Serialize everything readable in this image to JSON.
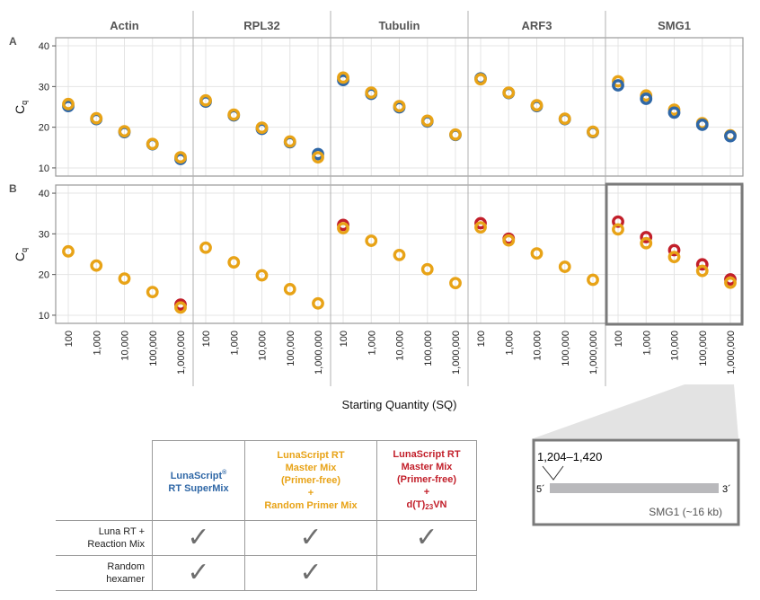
{
  "chart_data": {
    "type": "scatter",
    "facets": [
      "Actin",
      "RPL32",
      "Tubulin",
      "ARF3",
      "SMG1"
    ],
    "rows": [
      "A",
      "B"
    ],
    "x_categories": [
      "100",
      "1,000",
      "10,000",
      "100,000",
      "1,000,000"
    ],
    "xlabel": "Starting Quantity (SQ)",
    "ylabel_main": "C",
    "ylabel_sub": "q",
    "ylim": [
      8,
      42
    ],
    "yticks": [
      10,
      20,
      30,
      40
    ],
    "grid": true,
    "colors": {
      "blue": "#2f67a6",
      "orange": "#e8a317",
      "red": "#c21f2a"
    },
    "panels": [
      {
        "row": "A",
        "facet": "Actin",
        "series": [
          {
            "name": "LunaScript RT SuperMix",
            "color": "blue",
            "values": [
              25.2,
              22.0,
              18.8,
              15.8,
              12.2
            ]
          },
          {
            "name": "Primer-free + Random Primer Mix",
            "color": "orange",
            "values": [
              25.7,
              22.2,
              19.0,
              15.9,
              12.6
            ]
          }
        ]
      },
      {
        "row": "A",
        "facet": "RPL32",
        "series": [
          {
            "name": "LunaScript RT SuperMix",
            "color": "blue",
            "values": [
              26.3,
              22.9,
              19.6,
              16.3,
              13.4
            ]
          },
          {
            "name": "Primer-free + Random Primer Mix",
            "color": "orange",
            "values": [
              26.6,
              23.1,
              19.9,
              16.5,
              12.6
            ]
          }
        ]
      },
      {
        "row": "A",
        "facet": "Tubulin",
        "series": [
          {
            "name": "LunaScript RT SuperMix",
            "color": "blue",
            "values": [
              31.6,
              28.2,
              24.9,
              21.4,
              18.1
            ]
          },
          {
            "name": "Primer-free + Random Primer Mix",
            "color": "orange",
            "values": [
              32.2,
              28.5,
              25.2,
              21.6,
              18.2
            ]
          }
        ]
      },
      {
        "row": "A",
        "facet": "ARF3",
        "series": [
          {
            "name": "LunaScript RT SuperMix",
            "color": "blue",
            "values": [
              32.0,
              28.4,
              25.2,
              22.0,
              18.8
            ]
          },
          {
            "name": "Primer-free + Random Primer Mix",
            "color": "orange",
            "values": [
              31.8,
              28.5,
              25.4,
              22.1,
              18.9
            ]
          }
        ]
      },
      {
        "row": "A",
        "facet": "SMG1",
        "series": [
          {
            "name": "Primer-free + Random Primer Mix",
            "color": "orange",
            "values": [
              31.3,
              27.8,
              24.3,
              21.0,
              18.0
            ]
          },
          {
            "name": "LunaScript RT SuperMix",
            "color": "blue",
            "values": [
              30.3,
              27.0,
              23.6,
              20.6,
              17.8
            ]
          }
        ]
      },
      {
        "row": "B",
        "facet": "Actin",
        "series": [
          {
            "name": "Primer-free + d(T)23VN",
            "color": "red",
            "values": [
              null,
              null,
              null,
              null,
              12.6
            ]
          },
          {
            "name": "Primer-free + Random Primer Mix",
            "color": "orange",
            "values": [
              25.7,
              22.2,
              19.0,
              15.7,
              11.9
            ]
          }
        ]
      },
      {
        "row": "B",
        "facet": "RPL32",
        "series": [
          {
            "name": "Primer-free + Random Primer Mix",
            "color": "orange",
            "values": [
              26.6,
              23.0,
              19.8,
              16.4,
              12.9
            ]
          }
        ]
      },
      {
        "row": "B",
        "facet": "Tubulin",
        "series": [
          {
            "name": "Primer-free + d(T)23VN",
            "color": "red",
            "values": [
              32.2,
              null,
              null,
              null,
              null
            ]
          },
          {
            "name": "Primer-free + Random Primer Mix",
            "color": "orange",
            "values": [
              31.4,
              28.3,
              24.8,
              21.3,
              17.9
            ]
          }
        ]
      },
      {
        "row": "B",
        "facet": "ARF3",
        "series": [
          {
            "name": "Primer-free + d(T)23VN",
            "color": "red",
            "values": [
              32.6,
              28.8,
              null,
              null,
              null
            ]
          },
          {
            "name": "Primer-free + Random Primer Mix",
            "color": "orange",
            "values": [
              31.6,
              28.4,
              25.2,
              21.9,
              18.7
            ]
          }
        ]
      },
      {
        "row": "B",
        "facet": "SMG1",
        "series": [
          {
            "name": "Primer-free + d(T)23VN",
            "color": "red",
            "values": [
              33.0,
              29.2,
              26.0,
              22.5,
              18.8
            ]
          },
          {
            "name": "Primer-free + Random Primer Mix",
            "color": "orange",
            "values": [
              31.1,
              27.7,
              24.3,
              20.9,
              18.0
            ]
          }
        ]
      }
    ],
    "highlight": {
      "row": "B",
      "facet": "SMG1"
    }
  },
  "gene_diagram": {
    "range_label": "1,204–1,420",
    "five_prime": "5´",
    "three_prime": "3´",
    "gene_label": "SMG1 (~16 kb)"
  },
  "legend_table": {
    "columns": [
      {
        "color": "blue",
        "lines": [
          "LunaScript",
          "RT SuperMix"
        ],
        "sup": "®"
      },
      {
        "color": "orange",
        "lines": [
          "LunaScript RT",
          "Master Mix",
          "(Primer-free)",
          "+",
          "Random Primer Mix"
        ]
      },
      {
        "color": "red",
        "lines": [
          "LunaScript RT",
          "Master Mix",
          "(Primer-free)",
          "+"
        ],
        "last_pre": "d(T)",
        "last_sub": "23",
        "last_post": "VN"
      }
    ],
    "rows": [
      {
        "label_lines": [
          "Luna RT +",
          "Reaction Mix"
        ],
        "checks": [
          true,
          true,
          true
        ]
      },
      {
        "label_lines": [
          "Random",
          "hexamer"
        ],
        "checks": [
          true,
          true,
          false
        ]
      }
    ],
    "check_glyph": "✓"
  }
}
